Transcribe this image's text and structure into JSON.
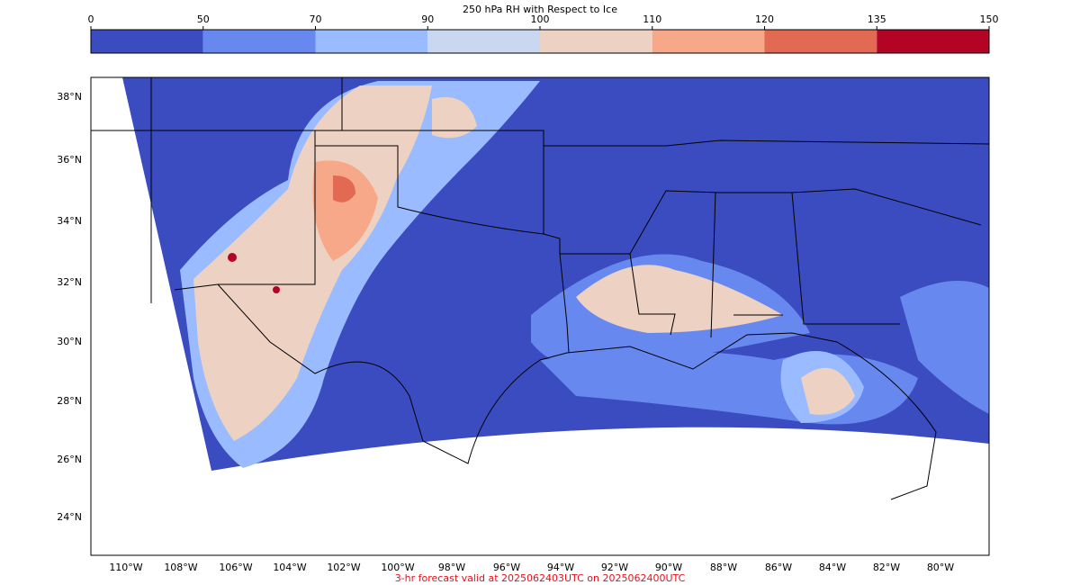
{
  "colorbar": {
    "title": "250 hPa RH with Respect to Ice",
    "ticks": [
      0,
      50,
      70,
      90,
      100,
      110,
      120,
      135,
      150
    ],
    "colors": [
      "#3b4cc0",
      "#6788ee",
      "#9abbff",
      "#c9d7f0",
      "#edd1c2",
      "#f7a889",
      "#e26952",
      "#b40426"
    ]
  },
  "map": {
    "lat_labels": [
      "38°N",
      "36°N",
      "34°N",
      "32°N",
      "30°N",
      "28°N",
      "26°N",
      "24°N"
    ],
    "lon_labels": [
      "110°W",
      "108°W",
      "106°W",
      "104°W",
      "102°W",
      "100°W",
      "98°W",
      "96°W",
      "94°W",
      "92°W",
      "90°W",
      "88°W",
      "86°W",
      "84°W",
      "82°W",
      "80°W"
    ]
  },
  "footer": "3-hr forecast valid at 2025062403UTC on 2025062400UTC"
}
